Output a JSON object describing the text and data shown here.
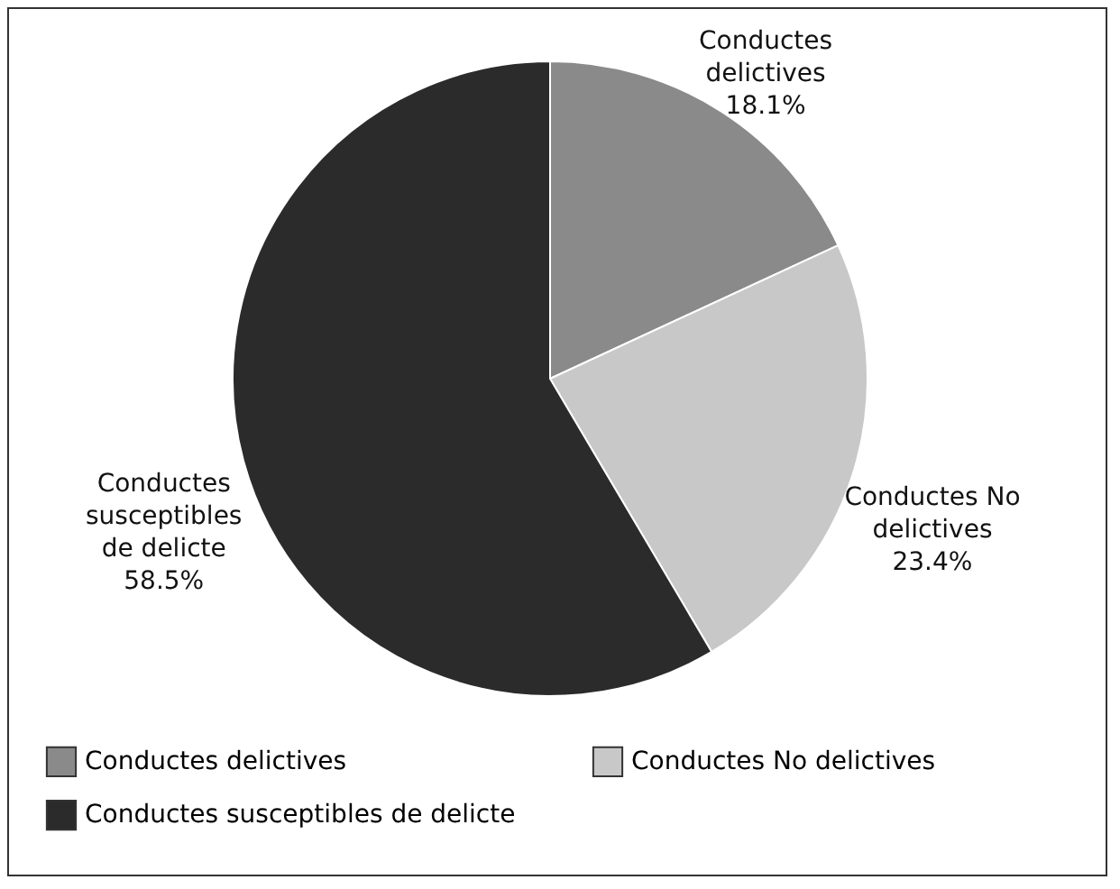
{
  "chart_data": {
    "type": "pie",
    "categories": [
      "Conductes delictives",
      "Conductes No delictives",
      "Conductes susceptibles de delicte"
    ],
    "values": [
      18.1,
      23.4,
      58.5
    ],
    "colors": [
      "#8a8a8a",
      "#c8c8c8",
      "#2b2b2b"
    ],
    "value_labels": [
      "18.1%",
      "23.4%",
      "58.5%"
    ],
    "legend": "bottom"
  }
}
